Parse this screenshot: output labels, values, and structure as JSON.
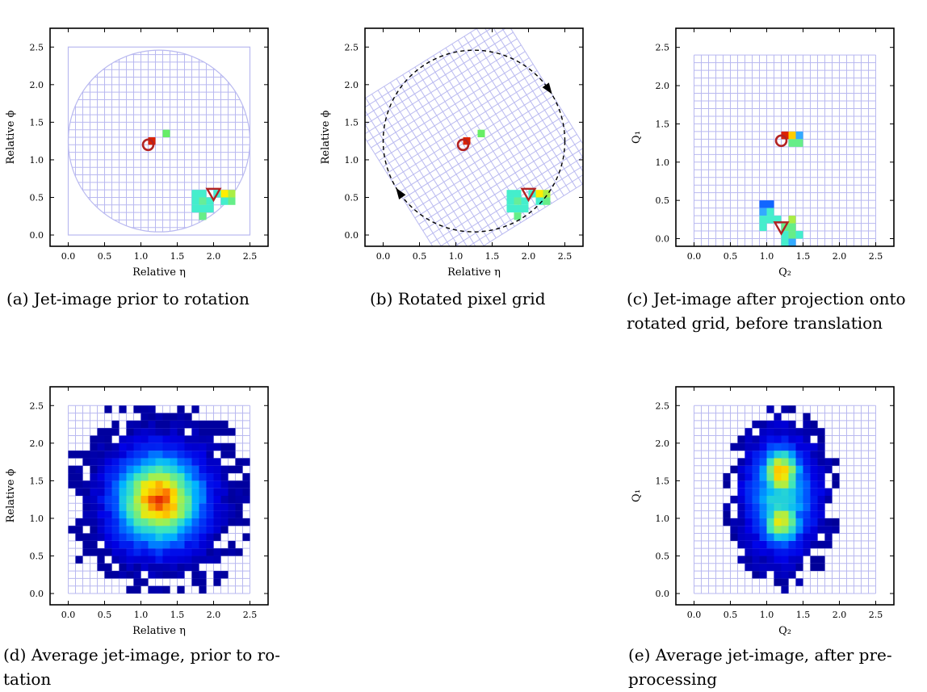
{
  "panels": [
    {
      "id": "a",
      "caption": "(a) Jet-image prior to rotation",
      "xlabel": "Relative η",
      "ylabel": "Relative ϕ",
      "xticks": [
        "0.0",
        "0.5",
        "1.0",
        "1.5",
        "2.0",
        "2.5"
      ],
      "yticks": [
        "0.0",
        "0.5",
        "1.0",
        "1.5",
        "2.0",
        "2.5"
      ]
    },
    {
      "id": "b",
      "caption": "(b) Rotated pixel grid",
      "xlabel": "Relative η",
      "ylabel": "Relative ϕ",
      "xticks": [
        "0.0",
        "0.5",
        "1.0",
        "1.5",
        "2.0",
        "2.5"
      ],
      "yticks": [
        "0.0",
        "0.5",
        "1.0",
        "1.5",
        "2.0",
        "2.5"
      ]
    },
    {
      "id": "c",
      "caption": "(c) Jet-image after projection onto rotated grid, before translation",
      "caption_lines": [
        "(c) Jet-image after projection onto",
        "rotated grid, before translation"
      ],
      "xlabel": "Q₂",
      "ylabel": "Q₁",
      "xticks": [
        "0.0",
        "0.5",
        "1.0",
        "1.5",
        "2.0",
        "2.5"
      ],
      "yticks": [
        "0.0",
        "0.5",
        "1.0",
        "1.5",
        "2.0",
        "2.5"
      ]
    },
    {
      "id": "d",
      "caption": "(d) Average jet-image, prior to rotation",
      "caption_lines": [
        "(d) Average jet-image, prior to ro-",
        "tation"
      ],
      "xlabel": "Relative η",
      "ylabel": "Relative ϕ",
      "xticks": [
        "0.0",
        "0.5",
        "1.0",
        "1.5",
        "2.0",
        "2.5"
      ],
      "yticks": [
        "0.0",
        "0.5",
        "1.0",
        "1.5",
        "2.0",
        "2.5"
      ]
    },
    {
      "id": "e",
      "caption": "(e) Average jet-image, after preprocessing",
      "caption_lines": [
        "(e) Average jet-image, after pre-",
        "processing"
      ],
      "xlabel": "Q₂",
      "ylabel": "Q₁",
      "xticks": [
        "0.0",
        "0.5",
        "1.0",
        "1.5",
        "2.0",
        "2.5"
      ],
      "yticks": [
        "0.0",
        "0.5",
        "1.0",
        "1.5",
        "2.0",
        "2.5"
      ]
    }
  ],
  "chart_data": [
    {
      "type": "heatmap",
      "panel": "a",
      "xlabel": "Relative η",
      "ylabel": "Relative ϕ",
      "xlim": [
        -0.25,
        2.75
      ],
      "ylim": [
        -0.15,
        2.75
      ],
      "grid": "25x25 pixels of 0.1, covering 0.0–2.5, circular region of radius 1.25 centred at (1.25, 1.25)",
      "markers": [
        {
          "shape": "circle",
          "x": 1.1,
          "y": 1.2
        },
        {
          "shape": "triangle-down",
          "x": 2.0,
          "y": 0.55
        }
      ],
      "pixels": [
        {
          "x": 1.15,
          "y": 1.25,
          "color": "#dd2200"
        },
        {
          "x": 1.35,
          "y": 1.35,
          "color": "#66ee66"
        },
        {
          "x": 1.75,
          "y": 0.55,
          "color": "#44eecc"
        },
        {
          "x": 1.85,
          "y": 0.55,
          "color": "#44eecc"
        },
        {
          "x": 1.75,
          "y": 0.45,
          "color": "#44eecc"
        },
        {
          "x": 1.85,
          "y": 0.45,
          "color": "#66ee99"
        },
        {
          "x": 1.95,
          "y": 0.45,
          "color": "#44eecc"
        },
        {
          "x": 2.05,
          "y": 0.55,
          "color": "#44eecc"
        },
        {
          "x": 2.15,
          "y": 0.55,
          "color": "#ffee00"
        },
        {
          "x": 2.25,
          "y": 0.55,
          "color": "#aaee44"
        },
        {
          "x": 2.15,
          "y": 0.45,
          "color": "#44eecc"
        },
        {
          "x": 2.25,
          "y": 0.45,
          "color": "#66ee88"
        },
        {
          "x": 1.95,
          "y": 0.35,
          "color": "#44eecc"
        },
        {
          "x": 1.85,
          "y": 0.35,
          "color": "#44eecc"
        },
        {
          "x": 1.75,
          "y": 0.35,
          "color": "#44eecc"
        },
        {
          "x": 1.85,
          "y": 0.25,
          "color": "#66ee88"
        }
      ]
    },
    {
      "type": "heatmap",
      "panel": "b",
      "xlabel": "Relative η",
      "ylabel": "Relative ϕ",
      "xlim": [
        -0.25,
        2.75
      ],
      "ylim": [
        -0.15,
        2.75
      ],
      "grid": "pixel grid rotated by about -30 degrees about (1.25, 1.25)",
      "annotation": "dashed circle of radius 1.25 centred at (1.25, 1.25) with rotation arrows",
      "markers": [
        {
          "shape": "circle",
          "x": 1.1,
          "y": 1.2
        },
        {
          "shape": "triangle-down",
          "x": 2.0,
          "y": 0.55
        }
      ]
    },
    {
      "type": "heatmap",
      "panel": "c",
      "xlabel": "Q₂",
      "ylabel": "Q₁",
      "xlim": [
        -0.25,
        2.75
      ],
      "ylim": [
        -0.1,
        2.75
      ],
      "grid": "25x25 pixels covering -0.1–2.4 vertically",
      "markers": [
        {
          "shape": "circle",
          "x": 1.2,
          "y": 1.28
        },
        {
          "shape": "triangle-down",
          "x": 1.2,
          "y": 0.15
        }
      ],
      "pixels": [
        {
          "x": 1.25,
          "y": 1.35,
          "color": "#dd2200"
        },
        {
          "x": 1.35,
          "y": 1.35,
          "color": "#ffcc00"
        },
        {
          "x": 1.45,
          "y": 1.35,
          "color": "#33aaff"
        },
        {
          "x": 1.35,
          "y": 1.25,
          "color": "#66ee88"
        },
        {
          "x": 1.45,
          "y": 1.25,
          "color": "#66ee88"
        },
        {
          "x": 0.95,
          "y": 0.45,
          "color": "#1166ff"
        },
        {
          "x": 1.05,
          "y": 0.45,
          "color": "#1166ff"
        },
        {
          "x": 0.95,
          "y": 0.35,
          "color": "#33aaff"
        },
        {
          "x": 1.05,
          "y": 0.35,
          "color": "#44eecc"
        },
        {
          "x": 0.95,
          "y": 0.25,
          "color": "#44eecc"
        },
        {
          "x": 1.05,
          "y": 0.25,
          "color": "#44eecc"
        },
        {
          "x": 0.95,
          "y": 0.15,
          "color": "#44eecc"
        },
        {
          "x": 1.15,
          "y": 0.25,
          "color": "#44eecc"
        },
        {
          "x": 1.35,
          "y": 0.25,
          "color": "#aaee44"
        },
        {
          "x": 1.25,
          "y": 0.15,
          "color": "#66ee88"
        },
        {
          "x": 1.35,
          "y": 0.15,
          "color": "#66ee88"
        },
        {
          "x": 1.25,
          "y": 0.05,
          "color": "#44eecc"
        },
        {
          "x": 1.35,
          "y": 0.05,
          "color": "#66ee88"
        },
        {
          "x": 1.45,
          "y": 0.05,
          "color": "#44eecc"
        },
        {
          "x": 1.35,
          "y": -0.05,
          "color": "#33aaff"
        },
        {
          "x": 1.25,
          "y": -0.05,
          "color": "#44eecc"
        }
      ]
    },
    {
      "type": "heatmap",
      "panel": "d",
      "xlabel": "Relative η",
      "ylabel": "Relative ϕ",
      "xlim": [
        -0.25,
        2.75
      ],
      "ylim": [
        -0.15,
        2.75
      ],
      "description_of_data": "average intensity peaked near (1.25, 1.25), falling off radially",
      "peak": [
        1.25,
        1.25
      ]
    },
    {
      "type": "heatmap",
      "panel": "e",
      "xlabel": "Q₂",
      "ylabel": "Q₁",
      "xlim": [
        -0.25,
        2.75
      ],
      "ylim": [
        -0.15,
        2.75
      ],
      "peaks": [
        [
          1.2,
          1.6
        ],
        [
          1.2,
          0.95
        ]
      ]
    }
  ]
}
